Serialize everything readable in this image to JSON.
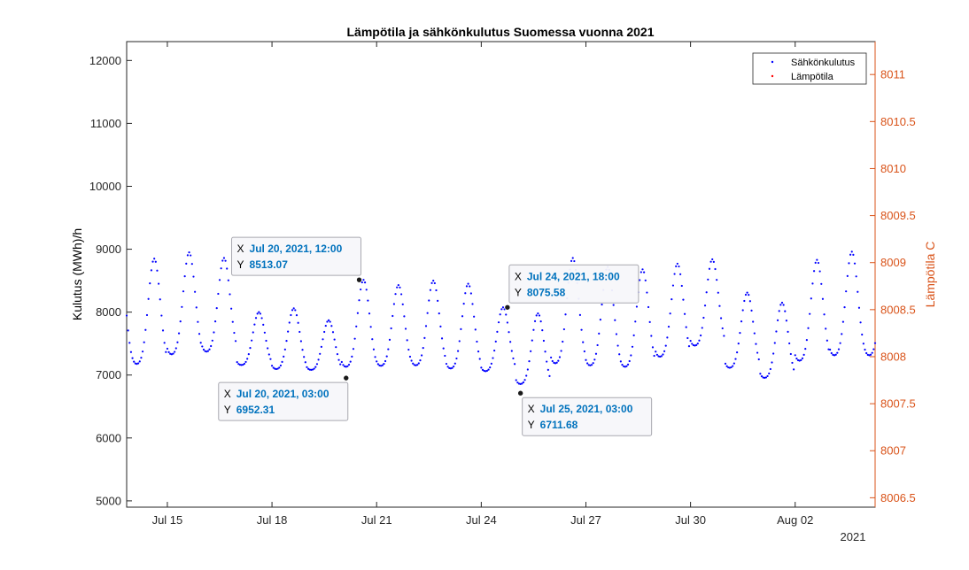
{
  "chart_data": {
    "type": "scatter",
    "title": "Lämpötila ja sähkönkulutus Suomessa vuonna 2021",
    "ylabel_left": "Kulutus (MWh)/h",
    "ylabel_right": "Lämpötila C",
    "x_year_label": "2021",
    "xlim": [
      "2021-07-13 20:00",
      "2021-08-04 07:00"
    ],
    "xticks": [
      {
        "date": "2021-07-15",
        "label": "Jul 15"
      },
      {
        "date": "2021-07-18",
        "label": "Jul 18"
      },
      {
        "date": "2021-07-21",
        "label": "Jul 21"
      },
      {
        "date": "2021-07-24",
        "label": "Jul 24"
      },
      {
        "date": "2021-07-27",
        "label": "Jul 27"
      },
      {
        "date": "2021-07-30",
        "label": "Jul 30"
      },
      {
        "date": "2021-08-02",
        "label": "Aug 02"
      }
    ],
    "ylim_left": [
      4900,
      12300
    ],
    "yticks_left": [
      "5000",
      "6000",
      "7000",
      "8000",
      "9000",
      "10000",
      "11000",
      "12000"
    ],
    "ylim_right": [
      8006.4,
      8011.35
    ],
    "yticks_right": [
      "8006.5",
      "8007",
      "8007.5",
      "8008",
      "8008.5",
      "8009",
      "8009.5",
      "8010",
      "8010.5",
      "8011"
    ],
    "legend": {
      "placement": "top-right",
      "entries": [
        {
          "label": "Sähkönkulutus",
          "color": "#0000FF"
        },
        {
          "label": "Lämpötila",
          "color": "#FF0000"
        }
      ]
    },
    "series": [
      {
        "name": "Sähkönkulutus",
        "color": "#0000FF",
        "marker": "dot",
        "daily_pattern": [
          {
            "date": "2021-07-14",
            "min": 6960,
            "max": 8850
          },
          {
            "date": "2021-07-15",
            "min": 7120,
            "max": 8950
          },
          {
            "date": "2021-07-16",
            "min": 7180,
            "max": 8860
          },
          {
            "date": "2021-07-17",
            "min": 7050,
            "max": 8000
          },
          {
            "date": "2021-07-18",
            "min": 6970,
            "max": 8060
          },
          {
            "date": "2021-07-19",
            "min": 6980,
            "max": 7870
          },
          {
            "date": "2021-07-20",
            "min": 6952.31,
            "max": 8513.07
          },
          {
            "date": "2021-07-21",
            "min": 6980,
            "max": 8430
          },
          {
            "date": "2021-07-22",
            "min": 6980,
            "max": 8500
          },
          {
            "date": "2021-07-23",
            "min": 6930,
            "max": 8450
          },
          {
            "date": "2021-07-24",
            "min": 6930,
            "max": 8075.58
          },
          {
            "date": "2021-07-25",
            "min": 6711.68,
            "max": 7980
          },
          {
            "date": "2021-07-26",
            "min": 6970,
            "max": 8860
          },
          {
            "date": "2021-07-27",
            "min": 6950,
            "max": 8720
          },
          {
            "date": "2021-07-28",
            "min": 6930,
            "max": 8680
          },
          {
            "date": "2021-07-29",
            "min": 7100,
            "max": 8770
          },
          {
            "date": "2021-07-30",
            "min": 7290,
            "max": 8840
          },
          {
            "date": "2021-07-31",
            "min": 6960,
            "max": 8310
          },
          {
            "date": "2021-08-01",
            "min": 6800,
            "max": 8150
          },
          {
            "date": "2021-08-02",
            "min": 7020,
            "max": 8830
          },
          {
            "date": "2021-08-03",
            "min": 7100,
            "max": 8960
          }
        ]
      },
      {
        "name": "Lämpötila",
        "color": "#FF0000",
        "marker": "dot",
        "points": []
      }
    ],
    "datatips": [
      {
        "x": "2021-07-20 12:00",
        "y": 8513.07,
        "x_label": "Jul 20, 2021, 12:00",
        "y_label": "8513.07",
        "box_side": "left-above"
      },
      {
        "x": "2021-07-20 03:00",
        "y": 6952.31,
        "x_label": "Jul 20, 2021, 03:00",
        "y_label": "6952.31",
        "box_side": "left-below"
      },
      {
        "x": "2021-07-24 18:00",
        "y": 8075.58,
        "x_label": "Jul 24, 2021, 18:00",
        "y_label": "8075.58",
        "box_side": "right-above"
      },
      {
        "x": "2021-07-25 03:00",
        "y": 6711.68,
        "x_label": "Jul 25, 2021, 03:00",
        "y_label": "6711.68",
        "box_side": "right-below"
      }
    ],
    "datatip_prefix_x": "X",
    "datatip_prefix_y": "Y",
    "grid": false
  }
}
